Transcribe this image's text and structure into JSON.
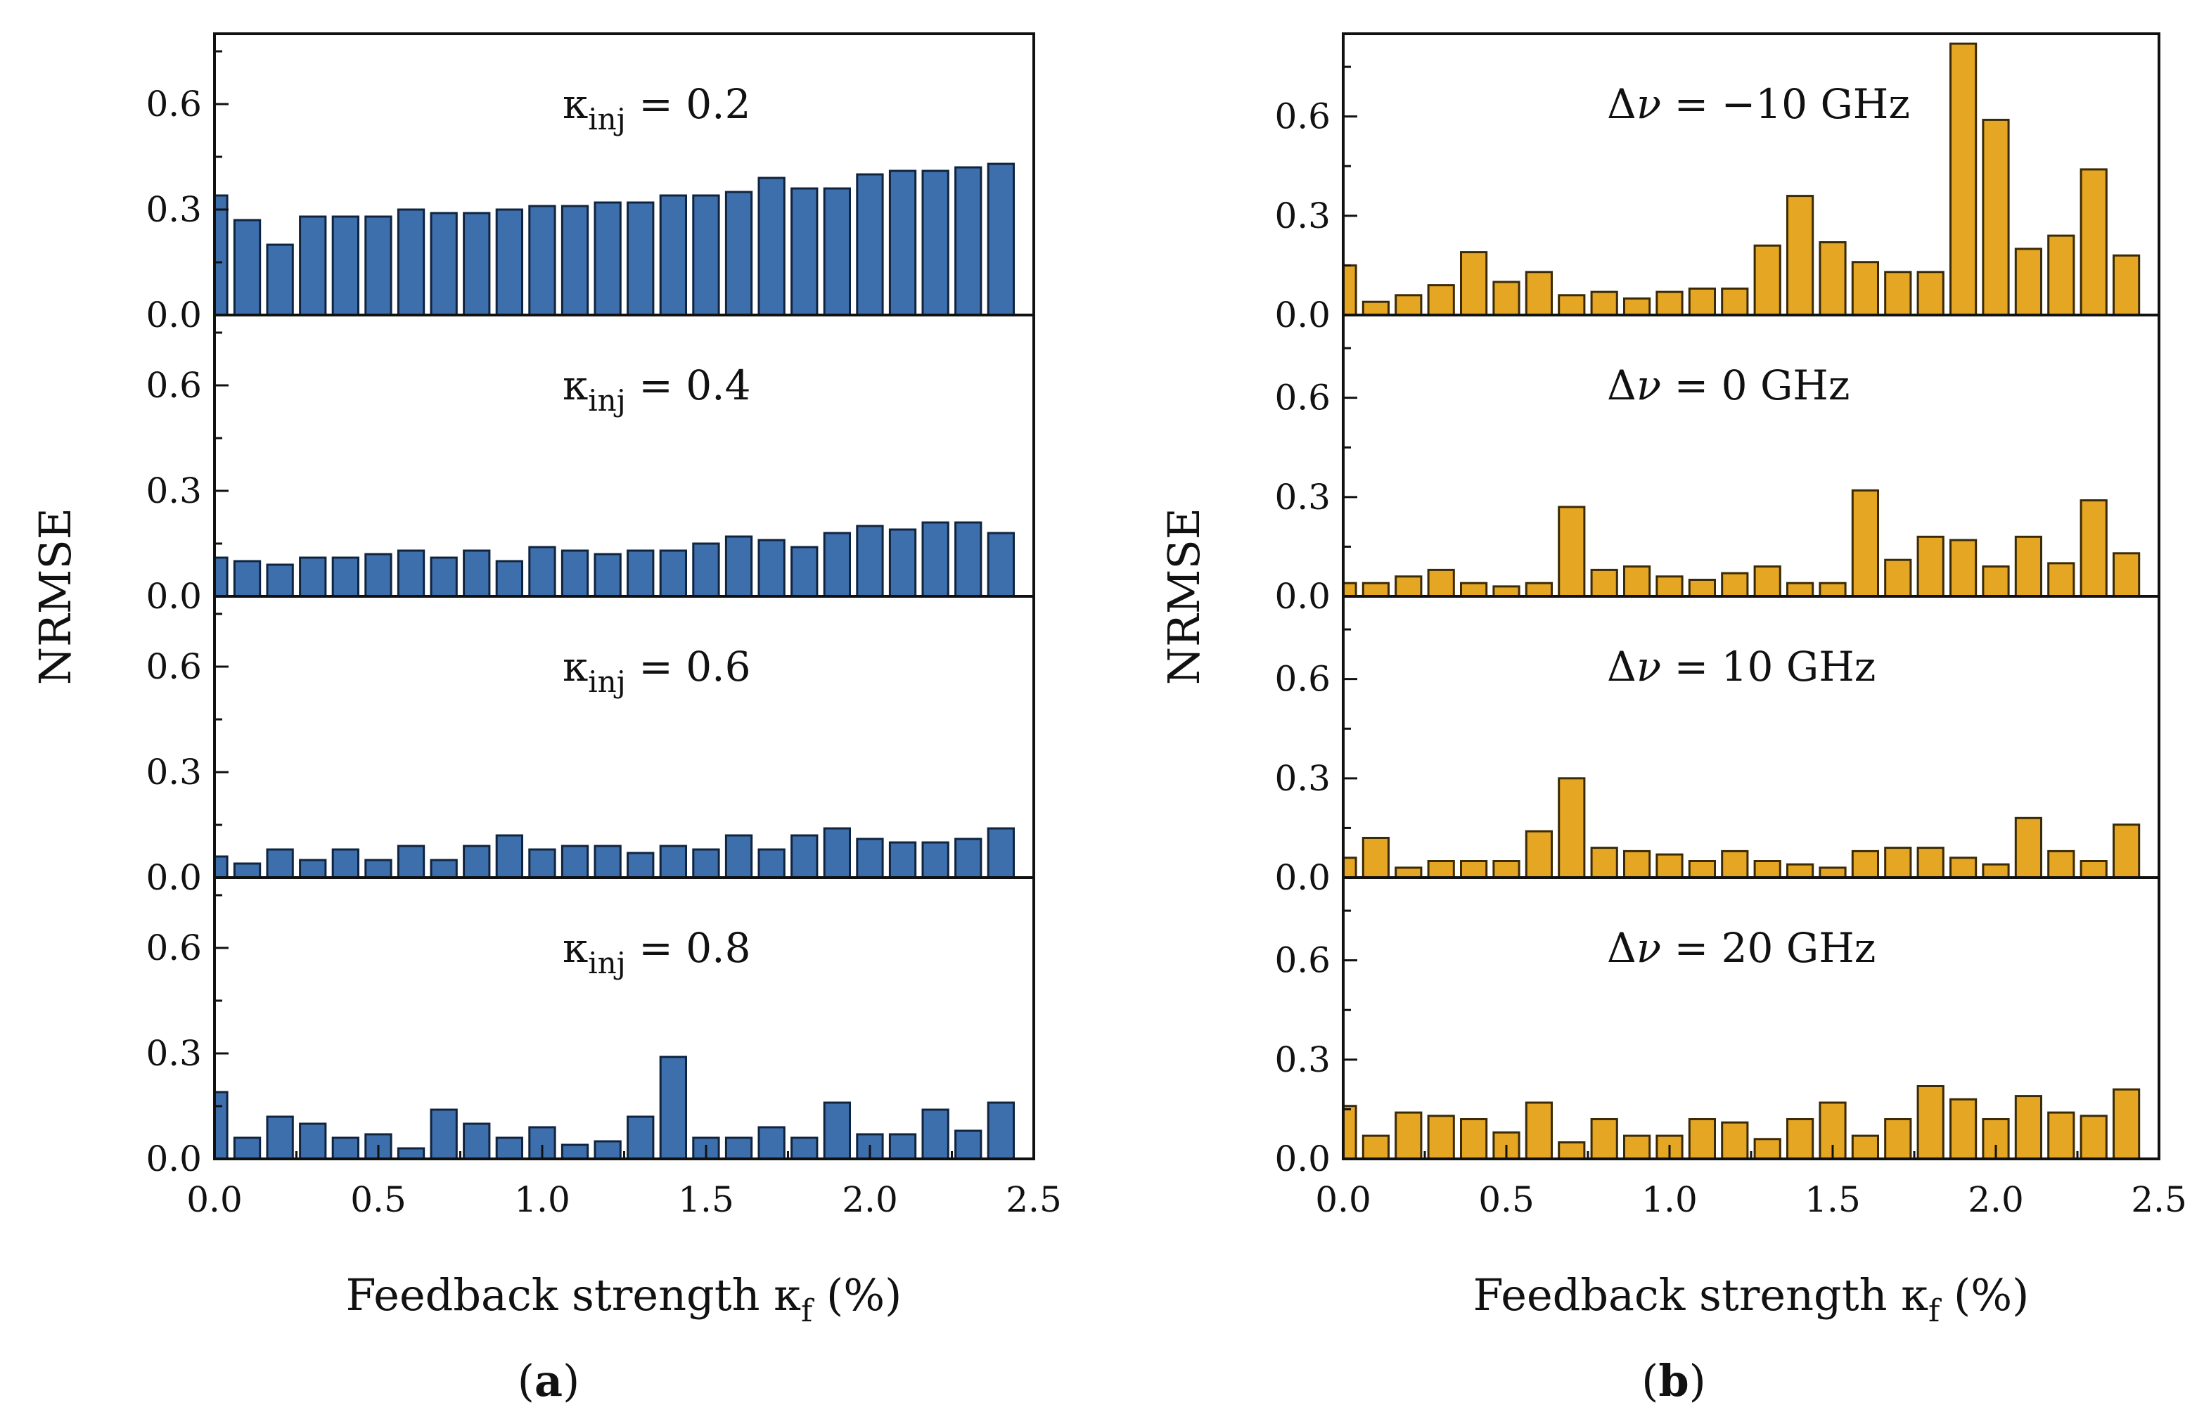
{
  "figure": {
    "panel_labels": [
      {
        "open": "(",
        "letter": "a",
        "close": ")"
      },
      {
        "open": "(",
        "letter": "b",
        "close": ")"
      }
    ]
  },
  "colors": {
    "panel_a_bar": "#3e6fad",
    "panel_a_bar_edge": "#10243f",
    "panel_b_bar": "#e5a623",
    "panel_b_bar_edge": "#3a2a05",
    "axis": "#111111"
  },
  "chart_data": [
    {
      "type": "bar",
      "panel": "a",
      "ylabel": "NRMSE",
      "xlabel_main": "Feedback strength ",
      "xlabel_symbol": "κ",
      "xlabel_sub": "f",
      "xlabel_unit": " (%)",
      "xlim": [
        0,
        2.5
      ],
      "xticks": [
        "0.0",
        "0.5",
        "1.0",
        "1.5",
        "2.0",
        "2.5"
      ],
      "ylim": [
        0,
        0.8
      ],
      "yticks": [
        "0.0",
        "0.3",
        "0.6"
      ],
      "x": [
        0.0,
        0.1,
        0.2,
        0.3,
        0.4,
        0.5,
        0.6,
        0.7,
        0.8,
        0.9,
        1.0,
        1.1,
        1.2,
        1.3,
        1.4,
        1.5,
        1.6,
        1.7,
        1.8,
        1.9,
        2.0,
        2.1,
        2.2,
        2.3,
        2.4
      ],
      "subplots": [
        {
          "annotation": {
            "symbol": "κ",
            "sub": "inj",
            "rest": " = 0.2"
          },
          "values": [
            0.34,
            0.27,
            0.2,
            0.28,
            0.28,
            0.28,
            0.3,
            0.29,
            0.29,
            0.3,
            0.31,
            0.31,
            0.32,
            0.32,
            0.34,
            0.34,
            0.35,
            0.39,
            0.36,
            0.36,
            0.4,
            0.41,
            0.41,
            0.42,
            0.43
          ]
        },
        {
          "annotation": {
            "symbol": "κ",
            "sub": "inj",
            "rest": " = 0.4"
          },
          "values": [
            0.11,
            0.1,
            0.09,
            0.11,
            0.11,
            0.12,
            0.13,
            0.11,
            0.13,
            0.1,
            0.14,
            0.13,
            0.12,
            0.13,
            0.13,
            0.15,
            0.17,
            0.16,
            0.14,
            0.18,
            0.2,
            0.19,
            0.21,
            0.21,
            0.18
          ]
        },
        {
          "annotation": {
            "symbol": "κ",
            "sub": "inj",
            "rest": " = 0.6"
          },
          "values": [
            0.06,
            0.04,
            0.08,
            0.05,
            0.08,
            0.05,
            0.09,
            0.05,
            0.09,
            0.12,
            0.08,
            0.09,
            0.09,
            0.07,
            0.09,
            0.08,
            0.12,
            0.08,
            0.12,
            0.14,
            0.11,
            0.1,
            0.1,
            0.11,
            0.14
          ]
        },
        {
          "annotation": {
            "symbol": "κ",
            "sub": "inj",
            "rest": " = 0.8"
          },
          "values": [
            0.19,
            0.06,
            0.12,
            0.1,
            0.06,
            0.07,
            0.03,
            0.14,
            0.1,
            0.06,
            0.09,
            0.04,
            0.05,
            0.12,
            0.29,
            0.06,
            0.06,
            0.09,
            0.06,
            0.16,
            0.07,
            0.07,
            0.14,
            0.08,
            0.16
          ]
        }
      ]
    },
    {
      "type": "bar",
      "panel": "b",
      "ylabel": "NRMSE",
      "xlabel_main": "Feedback strength ",
      "xlabel_symbol": "κ",
      "xlabel_sub": "f",
      "xlabel_unit": " (%)",
      "xlim": [
        0,
        2.5
      ],
      "xticks": [
        "0.0",
        "0.5",
        "1.0",
        "1.5",
        "2.0",
        "2.5"
      ],
      "ylim": [
        0,
        0.85
      ],
      "yticks": [
        "0.0",
        "0.3",
        "0.6"
      ],
      "x": [
        0.0,
        0.1,
        0.2,
        0.3,
        0.4,
        0.5,
        0.6,
        0.7,
        0.8,
        0.9,
        1.0,
        1.1,
        1.2,
        1.3,
        1.4,
        1.5,
        1.6,
        1.7,
        1.8,
        1.9,
        2.0,
        2.1,
        2.2,
        2.3,
        2.4
      ],
      "subplots": [
        {
          "annotation": {
            "delta": "Δ",
            "symbol": "ν",
            "rest": " = −10 GHz"
          },
          "values": [
            0.15,
            0.04,
            0.06,
            0.09,
            0.19,
            0.1,
            0.13,
            0.06,
            0.07,
            0.05,
            0.07,
            0.08,
            0.08,
            0.21,
            0.36,
            0.22,
            0.16,
            0.13,
            0.13,
            0.82,
            0.59,
            0.2,
            0.24,
            0.44,
            0.18
          ]
        },
        {
          "annotation": {
            "delta": "Δ",
            "symbol": "ν",
            "rest": " = 0 GHz"
          },
          "values": [
            0.04,
            0.04,
            0.06,
            0.08,
            0.04,
            0.03,
            0.04,
            0.27,
            0.08,
            0.09,
            0.06,
            0.05,
            0.07,
            0.09,
            0.04,
            0.04,
            0.32,
            0.11,
            0.18,
            0.17,
            0.09,
            0.18,
            0.1,
            0.29,
            0.13
          ]
        },
        {
          "annotation": {
            "delta": "Δ",
            "symbol": "ν",
            "rest": " = 10 GHz"
          },
          "values": [
            0.06,
            0.12,
            0.03,
            0.05,
            0.05,
            0.05,
            0.14,
            0.3,
            0.09,
            0.08,
            0.07,
            0.05,
            0.08,
            0.05,
            0.04,
            0.03,
            0.08,
            0.09,
            0.09,
            0.06,
            0.04,
            0.18,
            0.08,
            0.05,
            0.16
          ]
        },
        {
          "annotation": {
            "delta": "Δ",
            "symbol": "ν",
            "rest": " = 20 GHz"
          },
          "values": [
            0.16,
            0.07,
            0.14,
            0.13,
            0.12,
            0.08,
            0.17,
            0.05,
            0.12,
            0.07,
            0.07,
            0.12,
            0.11,
            0.06,
            0.12,
            0.17,
            0.07,
            0.12,
            0.22,
            0.18,
            0.12,
            0.19,
            0.14,
            0.13,
            0.21
          ]
        }
      ]
    }
  ]
}
